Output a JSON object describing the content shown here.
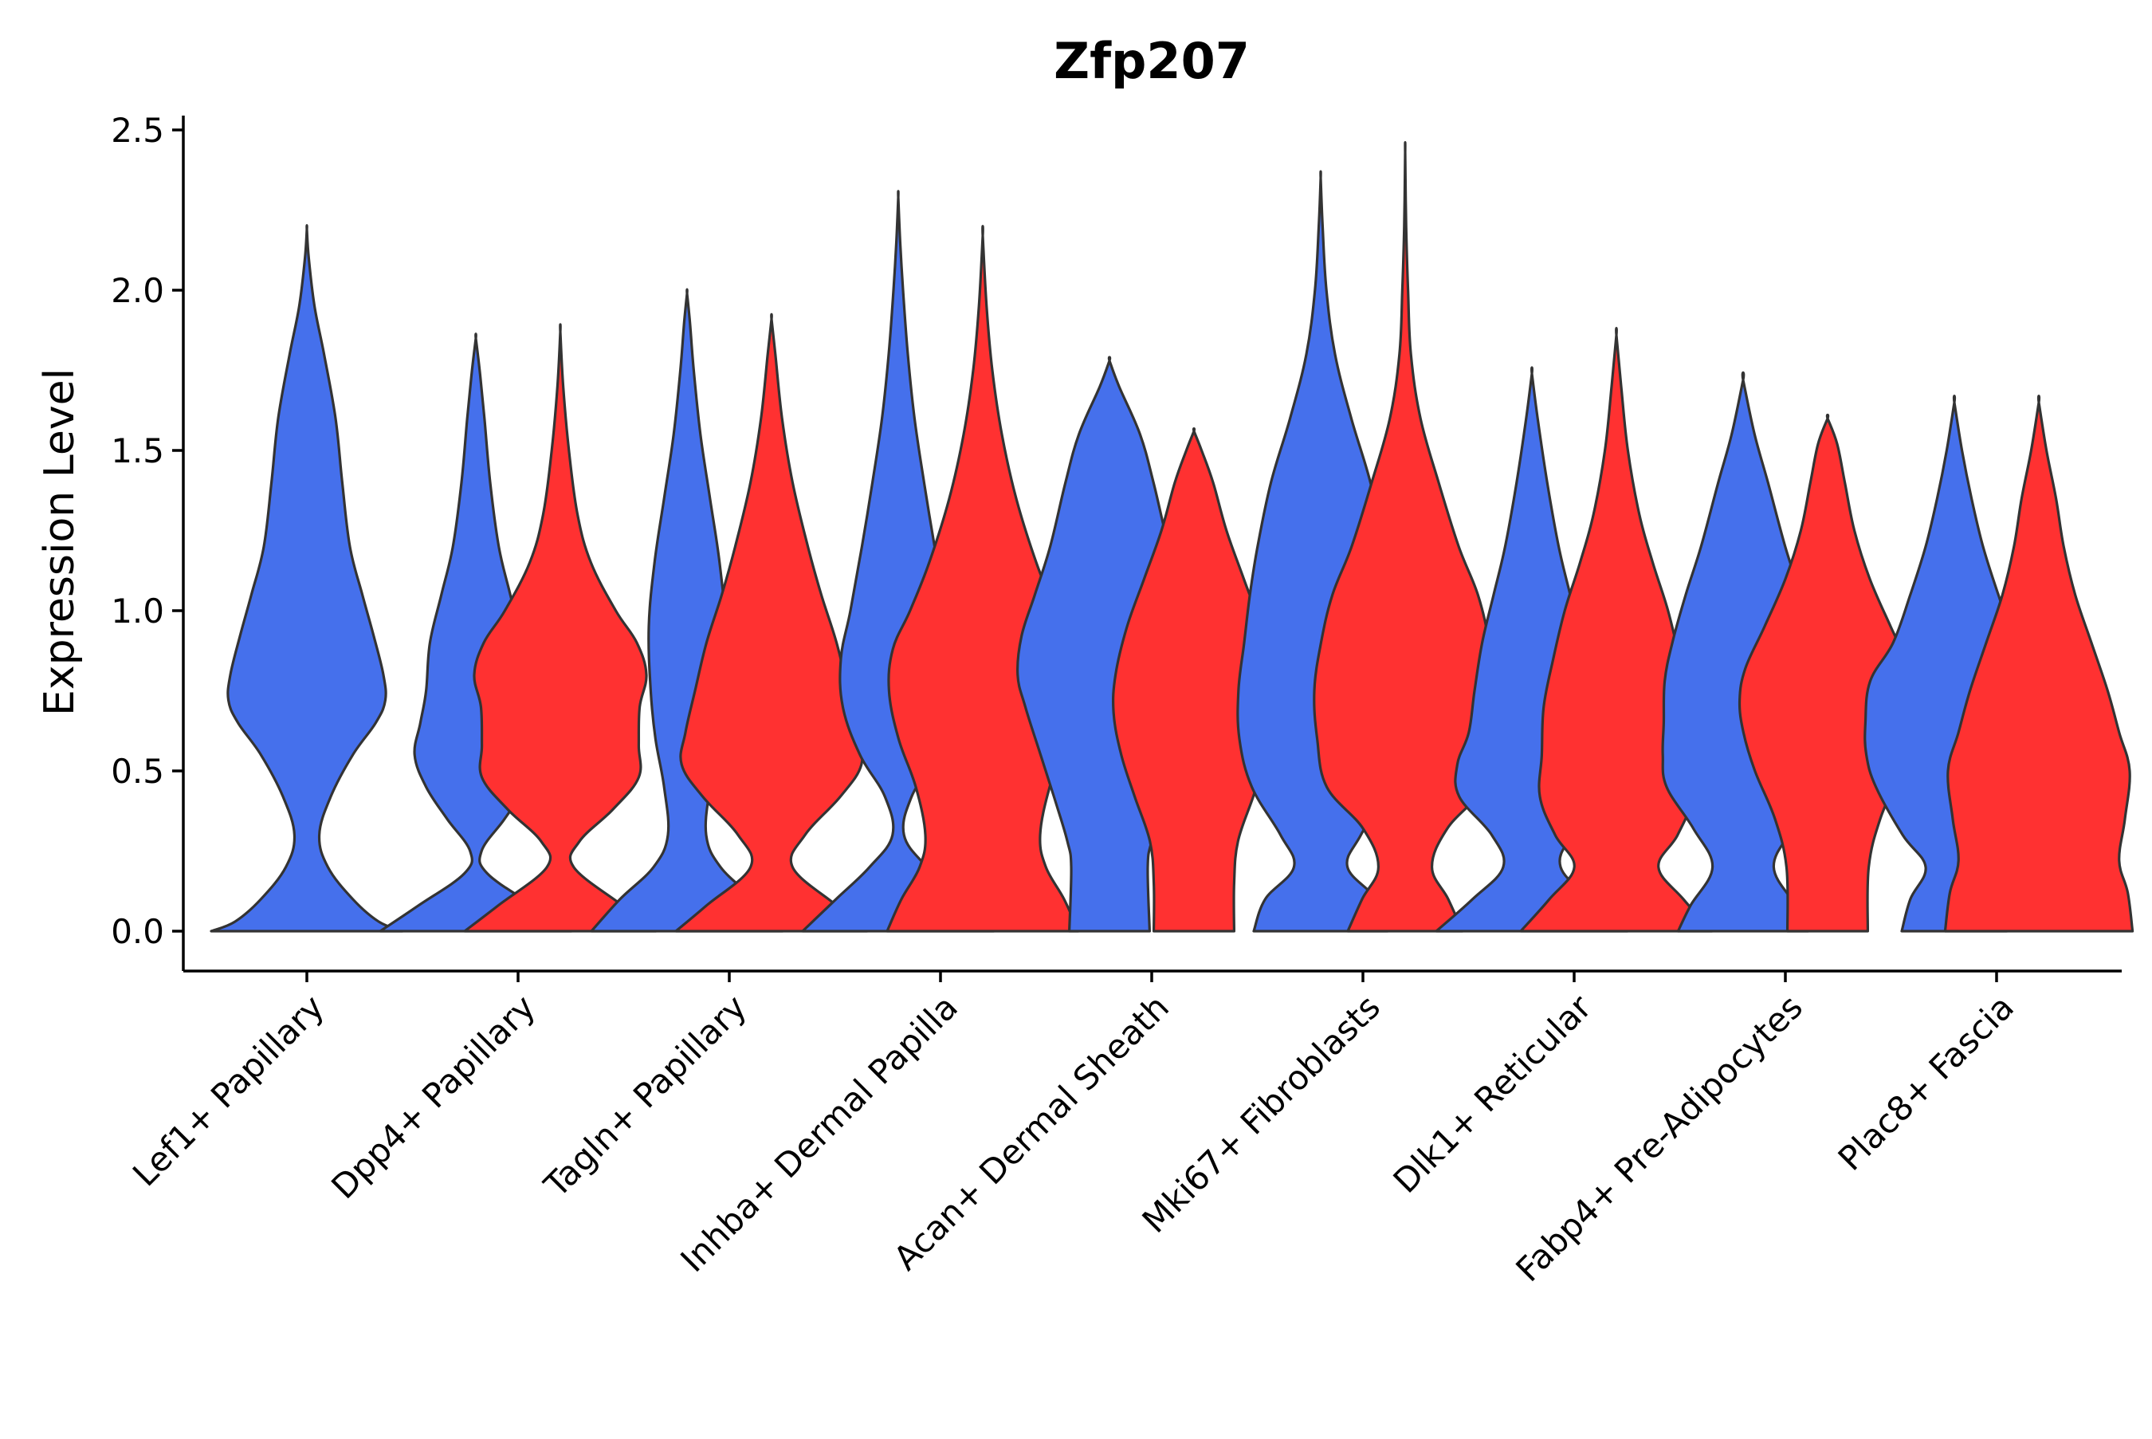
{
  "chart_data": {
    "type": "violin",
    "title": "Zfp207",
    "xlabel": "",
    "ylabel": "Expression Level",
    "ylim": [
      -0.12,
      2.55
    ],
    "yticks": [
      0.0,
      0.5,
      1.0,
      1.5,
      2.0,
      2.5
    ],
    "ytick_labels": [
      "0.0",
      "0.5",
      "1.0",
      "1.5",
      "2.0",
      "2.5"
    ],
    "legend": "none",
    "grid": false,
    "series_colors": {
      "blue": "#4570EC",
      "red": "#FF3131"
    },
    "categories": [
      "Lef1+ Papillary",
      "Dpp4+ Papillary",
      "Tagln+ Papillary",
      "Inhba+ Dermal Papilla",
      "Acan+ Dermal Sheath",
      "Mki67+ Fibroblasts",
      "Dlk1+ Reticular",
      "Fabp4+ Pre-Adipocytes",
      "Plac8+ Fascia"
    ],
    "violins": [
      {
        "category": "Lef1+ Papillary",
        "position": 1.0,
        "group": "blue",
        "max": 2.19,
        "profile": [
          [
            0,
            1.0
          ],
          [
            0.03,
            0.75
          ],
          [
            0.1,
            0.48
          ],
          [
            0.2,
            0.22
          ],
          [
            0.3,
            0.13
          ],
          [
            0.42,
            0.25
          ],
          [
            0.55,
            0.48
          ],
          [
            0.65,
            0.72
          ],
          [
            0.72,
            0.82
          ],
          [
            0.8,
            0.8
          ],
          [
            0.92,
            0.7
          ],
          [
            1.05,
            0.58
          ],
          [
            1.2,
            0.45
          ],
          [
            1.4,
            0.37
          ],
          [
            1.6,
            0.3
          ],
          [
            1.8,
            0.18
          ],
          [
            1.95,
            0.08
          ],
          [
            2.1,
            0.02
          ],
          [
            2.19,
            0.0
          ]
        ]
      },
      {
        "category": "Dpp4+ Papillary",
        "position": 1.8,
        "group": "blue",
        "max": 1.85,
        "profile": [
          [
            0,
            1.0
          ],
          [
            0.08,
            0.6
          ],
          [
            0.18,
            0.12
          ],
          [
            0.25,
            0.06
          ],
          [
            0.35,
            0.3
          ],
          [
            0.45,
            0.52
          ],
          [
            0.55,
            0.64
          ],
          [
            0.65,
            0.58
          ],
          [
            0.75,
            0.52
          ],
          [
            0.9,
            0.48
          ],
          [
            1.05,
            0.36
          ],
          [
            1.2,
            0.24
          ],
          [
            1.4,
            0.15
          ],
          [
            1.6,
            0.09
          ],
          [
            1.75,
            0.04
          ],
          [
            1.85,
            0.0
          ]
        ]
      },
      {
        "category": "Dpp4+ Papillary",
        "position": 2.2,
        "group": "red",
        "max": 1.87,
        "profile": [
          [
            0,
            1.0
          ],
          [
            0.08,
            0.65
          ],
          [
            0.2,
            0.14
          ],
          [
            0.28,
            0.2
          ],
          [
            0.38,
            0.55
          ],
          [
            0.48,
            0.82
          ],
          [
            0.58,
            0.82
          ],
          [
            0.7,
            0.83
          ],
          [
            0.8,
            0.9
          ],
          [
            0.9,
            0.8
          ],
          [
            1.0,
            0.58
          ],
          [
            1.15,
            0.32
          ],
          [
            1.3,
            0.18
          ],
          [
            1.5,
            0.09
          ],
          [
            1.7,
            0.03
          ],
          [
            1.87,
            0.0
          ]
        ]
      },
      {
        "category": "Tagln+ Papillary",
        "position": 2.8,
        "group": "blue",
        "max": 1.99,
        "profile": [
          [
            0,
            1.0
          ],
          [
            0.1,
            0.7
          ],
          [
            0.2,
            0.35
          ],
          [
            0.3,
            0.2
          ],
          [
            0.45,
            0.24
          ],
          [
            0.6,
            0.33
          ],
          [
            0.75,
            0.38
          ],
          [
            0.95,
            0.4
          ],
          [
            1.15,
            0.34
          ],
          [
            1.35,
            0.24
          ],
          [
            1.55,
            0.14
          ],
          [
            1.75,
            0.07
          ],
          [
            1.9,
            0.03
          ],
          [
            1.99,
            0.0
          ]
        ]
      },
      {
        "category": "Tagln+ Papillary",
        "position": 3.2,
        "group": "red",
        "max": 1.91,
        "profile": [
          [
            0,
            1.0
          ],
          [
            0.08,
            0.68
          ],
          [
            0.2,
            0.22
          ],
          [
            0.3,
            0.35
          ],
          [
            0.42,
            0.72
          ],
          [
            0.52,
            0.94
          ],
          [
            0.62,
            0.9
          ],
          [
            0.75,
            0.8
          ],
          [
            0.9,
            0.68
          ],
          [
            1.05,
            0.52
          ],
          [
            1.2,
            0.38
          ],
          [
            1.4,
            0.22
          ],
          [
            1.6,
            0.11
          ],
          [
            1.8,
            0.04
          ],
          [
            1.91,
            0.0
          ]
        ]
      },
      {
        "category": "Inhba+ Dermal Papilla",
        "position": 3.8,
        "group": "blue",
        "max": 2.29,
        "profile": [
          [
            0,
            1.0
          ],
          [
            0.1,
            0.65
          ],
          [
            0.2,
            0.3
          ],
          [
            0.3,
            0.06
          ],
          [
            0.42,
            0.14
          ],
          [
            0.55,
            0.4
          ],
          [
            0.7,
            0.58
          ],
          [
            0.85,
            0.6
          ],
          [
            1.0,
            0.5
          ],
          [
            1.2,
            0.38
          ],
          [
            1.4,
            0.27
          ],
          [
            1.6,
            0.17
          ],
          [
            1.8,
            0.1
          ],
          [
            2.0,
            0.05
          ],
          [
            2.15,
            0.02
          ],
          [
            2.29,
            0.0
          ]
        ]
      },
      {
        "category": "Inhba+ Dermal Papilla",
        "position": 4.2,
        "group": "red",
        "max": 2.17,
        "profile": [
          [
            0,
            1.0
          ],
          [
            0.1,
            0.85
          ],
          [
            0.2,
            0.66
          ],
          [
            0.3,
            0.6
          ],
          [
            0.45,
            0.7
          ],
          [
            0.6,
            0.88
          ],
          [
            0.75,
            0.98
          ],
          [
            0.88,
            0.94
          ],
          [
            1.0,
            0.76
          ],
          [
            1.15,
            0.56
          ],
          [
            1.35,
            0.35
          ],
          [
            1.55,
            0.2
          ],
          [
            1.75,
            0.1
          ],
          [
            1.95,
            0.04
          ],
          [
            2.17,
            0.0
          ]
        ]
      },
      {
        "category": "Acan+ Dermal Sheath",
        "position": 4.8,
        "group": "blue",
        "max": 1.78,
        "profile": [
          [
            0,
            0.42
          ],
          [
            0.2,
            0.4
          ],
          [
            0.28,
            0.44
          ],
          [
            0.4,
            0.56
          ],
          [
            0.55,
            0.72
          ],
          [
            0.7,
            0.88
          ],
          [
            0.8,
            0.96
          ],
          [
            0.92,
            0.92
          ],
          [
            1.05,
            0.78
          ],
          [
            1.2,
            0.62
          ],
          [
            1.4,
            0.46
          ],
          [
            1.55,
            0.32
          ],
          [
            1.7,
            0.1
          ],
          [
            1.78,
            0.0
          ]
        ]
      },
      {
        "category": "Acan+ Dermal Sheath",
        "position": 5.2,
        "group": "red",
        "max": 1.56,
        "profile": [
          [
            0,
            0.42
          ],
          [
            0.15,
            0.42
          ],
          [
            0.28,
            0.46
          ],
          [
            0.42,
            0.62
          ],
          [
            0.55,
            0.76
          ],
          [
            0.68,
            0.84
          ],
          [
            0.8,
            0.82
          ],
          [
            0.95,
            0.7
          ],
          [
            1.1,
            0.52
          ],
          [
            1.25,
            0.34
          ],
          [
            1.4,
            0.2
          ],
          [
            1.5,
            0.08
          ],
          [
            1.56,
            0.0
          ]
        ]
      },
      {
        "category": "Mki67+ Fibroblasts",
        "position": 5.8,
        "group": "blue",
        "max": 2.35,
        "profile": [
          [
            0,
            0.7
          ],
          [
            0.1,
            0.58
          ],
          [
            0.2,
            0.28
          ],
          [
            0.3,
            0.42
          ],
          [
            0.45,
            0.72
          ],
          [
            0.6,
            0.85
          ],
          [
            0.75,
            0.86
          ],
          [
            0.9,
            0.8
          ],
          [
            1.05,
            0.74
          ],
          [
            1.2,
            0.66
          ],
          [
            1.4,
            0.52
          ],
          [
            1.6,
            0.32
          ],
          [
            1.8,
            0.15
          ],
          [
            2.0,
            0.06
          ],
          [
            2.2,
            0.02
          ],
          [
            2.35,
            0.0
          ]
        ]
      },
      {
        "category": "Mki67+ Fibroblasts",
        "position": 6.2,
        "group": "red",
        "max": 2.43,
        "profile": [
          [
            0,
            0.6
          ],
          [
            0.1,
            0.45
          ],
          [
            0.2,
            0.28
          ],
          [
            0.32,
            0.44
          ],
          [
            0.45,
            0.82
          ],
          [
            0.6,
            0.92
          ],
          [
            0.75,
            0.95
          ],
          [
            0.9,
            0.88
          ],
          [
            1.05,
            0.76
          ],
          [
            1.2,
            0.56
          ],
          [
            1.4,
            0.35
          ],
          [
            1.6,
            0.16
          ],
          [
            1.8,
            0.06
          ],
          [
            2.0,
            0.03
          ],
          [
            2.2,
            0.01
          ],
          [
            2.43,
            0.0
          ]
        ]
      },
      {
        "category": "Dlk1+ Reticular",
        "position": 6.8,
        "group": "blue",
        "max": 1.74,
        "profile": [
          [
            0,
            1.0
          ],
          [
            0.1,
            0.62
          ],
          [
            0.2,
            0.3
          ],
          [
            0.3,
            0.42
          ],
          [
            0.42,
            0.76
          ],
          [
            0.52,
            0.78
          ],
          [
            0.62,
            0.66
          ],
          [
            0.75,
            0.6
          ],
          [
            0.9,
            0.52
          ],
          [
            1.05,
            0.4
          ],
          [
            1.2,
            0.28
          ],
          [
            1.4,
            0.16
          ],
          [
            1.6,
            0.06
          ],
          [
            1.74,
            0.0
          ]
        ]
      },
      {
        "category": "Dlk1+ Reticular",
        "position": 7.2,
        "group": "red",
        "max": 1.86,
        "profile": [
          [
            0,
            1.0
          ],
          [
            0.1,
            0.7
          ],
          [
            0.2,
            0.44
          ],
          [
            0.3,
            0.64
          ],
          [
            0.42,
            0.8
          ],
          [
            0.55,
            0.78
          ],
          [
            0.7,
            0.76
          ],
          [
            0.85,
            0.66
          ],
          [
            1.0,
            0.54
          ],
          [
            1.15,
            0.38
          ],
          [
            1.3,
            0.24
          ],
          [
            1.5,
            0.12
          ],
          [
            1.7,
            0.05
          ],
          [
            1.86,
            0.0
          ]
        ]
      },
      {
        "category": "Fabp4+ Pre-Adipocytes",
        "position": 7.8,
        "group": "blue",
        "max": 1.72,
        "profile": [
          [
            0,
            0.68
          ],
          [
            0.08,
            0.55
          ],
          [
            0.2,
            0.32
          ],
          [
            0.32,
            0.52
          ],
          [
            0.45,
            0.8
          ],
          [
            0.55,
            0.84
          ],
          [
            0.65,
            0.83
          ],
          [
            0.78,
            0.82
          ],
          [
            0.9,
            0.74
          ],
          [
            1.05,
            0.6
          ],
          [
            1.2,
            0.44
          ],
          [
            1.4,
            0.26
          ],
          [
            1.55,
            0.12
          ],
          [
            1.72,
            0.0
          ]
        ]
      },
      {
        "category": "Fabp4+ Pre-Adipocytes",
        "position": 8.2,
        "group": "red",
        "max": 1.6,
        "profile": [
          [
            0,
            0.42
          ],
          [
            0.2,
            0.43
          ],
          [
            0.35,
            0.55
          ],
          [
            0.5,
            0.76
          ],
          [
            0.62,
            0.88
          ],
          [
            0.72,
            0.92
          ],
          [
            0.82,
            0.86
          ],
          [
            0.95,
            0.66
          ],
          [
            1.1,
            0.44
          ],
          [
            1.25,
            0.28
          ],
          [
            1.4,
            0.18
          ],
          [
            1.52,
            0.1
          ],
          [
            1.6,
            0.0
          ]
        ]
      },
      {
        "category": "Plac8+ Fascia",
        "position": 8.8,
        "group": "blue",
        "max": 1.65,
        "profile": [
          [
            0,
            0.55
          ],
          [
            0.1,
            0.46
          ],
          [
            0.2,
            0.3
          ],
          [
            0.3,
            0.54
          ],
          [
            0.45,
            0.82
          ],
          [
            0.55,
            0.92
          ],
          [
            0.65,
            0.93
          ],
          [
            0.78,
            0.88
          ],
          [
            0.9,
            0.64
          ],
          [
            1.05,
            0.46
          ],
          [
            1.2,
            0.3
          ],
          [
            1.35,
            0.18
          ],
          [
            1.5,
            0.08
          ],
          [
            1.65,
            0.0
          ]
        ]
      },
      {
        "category": "Plac8+ Fascia",
        "position": 9.2,
        "group": "red",
        "max": 1.65,
        "profile": [
          [
            0,
            0.98
          ],
          [
            0.12,
            0.93
          ],
          [
            0.22,
            0.84
          ],
          [
            0.35,
            0.9
          ],
          [
            0.5,
            0.95
          ],
          [
            0.62,
            0.84
          ],
          [
            0.75,
            0.72
          ],
          [
            0.9,
            0.55
          ],
          [
            1.05,
            0.38
          ],
          [
            1.2,
            0.26
          ],
          [
            1.35,
            0.18
          ],
          [
            1.5,
            0.08
          ],
          [
            1.65,
            0.0
          ]
        ]
      }
    ]
  }
}
